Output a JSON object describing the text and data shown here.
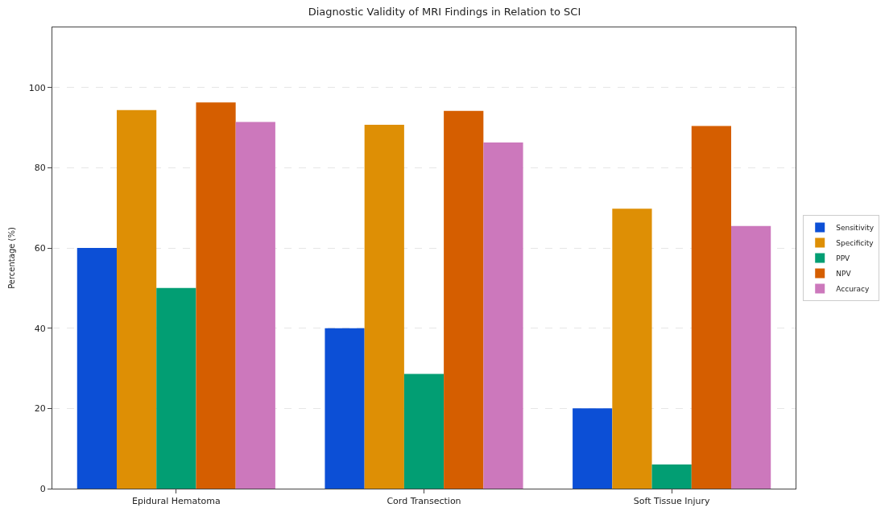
{
  "chart_data": {
    "type": "bar",
    "title": "Diagnostic Validity of MRI Findings in Relation to SCI",
    "ylabel": "Percentage (%)",
    "categories": [
      "Epidural Hematoma",
      "Cord Transection",
      "Soft Tissue Injury"
    ],
    "series": [
      {
        "name": "Sensitivity",
        "color": "#0c4fd6",
        "values": [
          60,
          40,
          20
        ]
      },
      {
        "name": "Specificity",
        "color": "#de8f05",
        "values": [
          94.4,
          90.7,
          69.8
        ]
      },
      {
        "name": "PPV",
        "color": "#029e73",
        "values": [
          50,
          28.6,
          6
        ]
      },
      {
        "name": "NPV",
        "color": "#d55e00",
        "values": [
          96.3,
          94.2,
          90.4
        ]
      },
      {
        "name": "Accuracy",
        "color": "#cc78bc",
        "values": [
          91.4,
          86.3,
          65.5
        ]
      }
    ],
    "ylim": [
      0,
      115
    ],
    "yticks": [
      0,
      20,
      40,
      60,
      80,
      100
    ],
    "grid": "y",
    "legend": "right"
  }
}
